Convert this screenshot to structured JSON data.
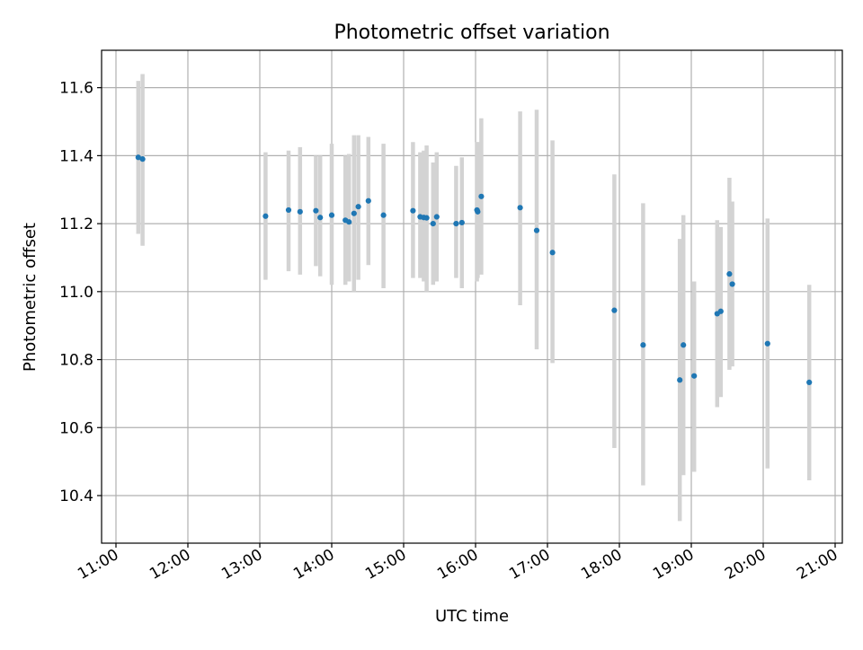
{
  "chart_data": {
    "type": "scatter",
    "title": "Photometric offset variation",
    "xlabel": "UTC time",
    "ylabel": "Photometric offset",
    "x_unit": "hours (UTC)",
    "xlim": [
      10.8,
      21.1
    ],
    "ylim": [
      10.26,
      11.71
    ],
    "x_ticks": [
      {
        "value": 11,
        "label": "11:00"
      },
      {
        "value": 12,
        "label": "12:00"
      },
      {
        "value": 13,
        "label": "13:00"
      },
      {
        "value": 14,
        "label": "14:00"
      },
      {
        "value": 15,
        "label": "15:00"
      },
      {
        "value": 16,
        "label": "16:00"
      },
      {
        "value": 17,
        "label": "17:00"
      },
      {
        "value": 18,
        "label": "18:00"
      },
      {
        "value": 19,
        "label": "19:00"
      },
      {
        "value": 20,
        "label": "20:00"
      },
      {
        "value": 21,
        "label": "21:00"
      }
    ],
    "y_ticks": [
      {
        "value": 10.4,
        "label": "10.4"
      },
      {
        "value": 10.6,
        "label": "10.6"
      },
      {
        "value": 10.8,
        "label": "10.8"
      },
      {
        "value": 11.0,
        "label": "11.0"
      },
      {
        "value": 11.2,
        "label": "11.2"
      },
      {
        "value": 11.4,
        "label": "11.4"
      },
      {
        "value": 11.6,
        "label": "11.6"
      }
    ],
    "grid": true,
    "legend": false,
    "colors": {
      "point": "#1f77b4",
      "errorbar": "#d3d3d3",
      "grid": "#b0b0b0",
      "axes": "#000000"
    },
    "points": [
      {
        "x": 11.31,
        "y": 11.395,
        "ylow": 11.17,
        "yhigh": 11.62
      },
      {
        "x": 11.37,
        "y": 11.39,
        "ylow": 11.135,
        "yhigh": 11.64
      },
      {
        "x": 13.08,
        "y": 11.222,
        "ylow": 11.035,
        "yhigh": 11.41
      },
      {
        "x": 13.4,
        "y": 11.24,
        "ylow": 11.06,
        "yhigh": 11.415
      },
      {
        "x": 13.56,
        "y": 11.235,
        "ylow": 11.05,
        "yhigh": 11.425
      },
      {
        "x": 13.78,
        "y": 11.238,
        "ylow": 11.075,
        "yhigh": 11.4
      },
      {
        "x": 13.84,
        "y": 11.218,
        "ylow": 11.045,
        "yhigh": 11.4
      },
      {
        "x": 14.0,
        "y": 11.225,
        "ylow": 11.02,
        "yhigh": 11.435
      },
      {
        "x": 14.19,
        "y": 11.21,
        "ylow": 11.02,
        "yhigh": 11.4
      },
      {
        "x": 14.24,
        "y": 11.205,
        "ylow": 11.03,
        "yhigh": 11.405
      },
      {
        "x": 14.31,
        "y": 11.23,
        "ylow": 11.0,
        "yhigh": 11.46
      },
      {
        "x": 14.37,
        "y": 11.25,
        "ylow": 11.035,
        "yhigh": 11.46
      },
      {
        "x": 14.51,
        "y": 11.267,
        "ylow": 11.078,
        "yhigh": 11.455
      },
      {
        "x": 14.72,
        "y": 11.225,
        "ylow": 11.01,
        "yhigh": 11.435
      },
      {
        "x": 15.13,
        "y": 11.238,
        "ylow": 11.04,
        "yhigh": 11.44
      },
      {
        "x": 15.23,
        "y": 11.22,
        "ylow": 11.04,
        "yhigh": 11.41
      },
      {
        "x": 15.28,
        "y": 11.218,
        "ylow": 11.03,
        "yhigh": 11.415
      },
      {
        "x": 15.32,
        "y": 11.217,
        "ylow": 11.0,
        "yhigh": 11.43
      },
      {
        "x": 15.41,
        "y": 11.2,
        "ylow": 11.02,
        "yhigh": 11.38
      },
      {
        "x": 15.46,
        "y": 11.22,
        "ylow": 11.03,
        "yhigh": 11.41
      },
      {
        "x": 15.73,
        "y": 11.2,
        "ylow": 11.04,
        "yhigh": 11.37
      },
      {
        "x": 15.81,
        "y": 11.203,
        "ylow": 11.01,
        "yhigh": 11.395
      },
      {
        "x": 16.02,
        "y": 11.24,
        "ylow": 11.03,
        "yhigh": 11.44
      },
      {
        "x": 16.03,
        "y": 11.235,
        "ylow": 11.04,
        "yhigh": 11.44
      },
      {
        "x": 16.08,
        "y": 11.28,
        "ylow": 11.05,
        "yhigh": 11.51
      },
      {
        "x": 16.62,
        "y": 11.247,
        "ylow": 10.96,
        "yhigh": 11.53
      },
      {
        "x": 16.85,
        "y": 11.18,
        "ylow": 10.83,
        "yhigh": 11.535
      },
      {
        "x": 17.07,
        "y": 11.115,
        "ylow": 10.79,
        "yhigh": 11.445
      },
      {
        "x": 17.93,
        "y": 10.945,
        "ylow": 10.54,
        "yhigh": 11.345
      },
      {
        "x": 18.33,
        "y": 10.843,
        "ylow": 10.43,
        "yhigh": 11.26
      },
      {
        "x": 18.84,
        "y": 10.74,
        "ylow": 10.325,
        "yhigh": 11.155
      },
      {
        "x": 18.89,
        "y": 10.843,
        "ylow": 10.46,
        "yhigh": 11.225
      },
      {
        "x": 19.04,
        "y": 10.752,
        "ylow": 10.47,
        "yhigh": 11.03
      },
      {
        "x": 19.36,
        "y": 10.935,
        "ylow": 10.66,
        "yhigh": 11.21
      },
      {
        "x": 19.41,
        "y": 10.942,
        "ylow": 10.69,
        "yhigh": 11.19
      },
      {
        "x": 19.53,
        "y": 11.052,
        "ylow": 10.77,
        "yhigh": 11.335
      },
      {
        "x": 19.57,
        "y": 11.022,
        "ylow": 10.78,
        "yhigh": 11.265
      },
      {
        "x": 20.06,
        "y": 10.847,
        "ylow": 10.48,
        "yhigh": 11.215
      },
      {
        "x": 20.64,
        "y": 10.733,
        "ylow": 10.445,
        "yhigh": 11.02
      }
    ]
  }
}
